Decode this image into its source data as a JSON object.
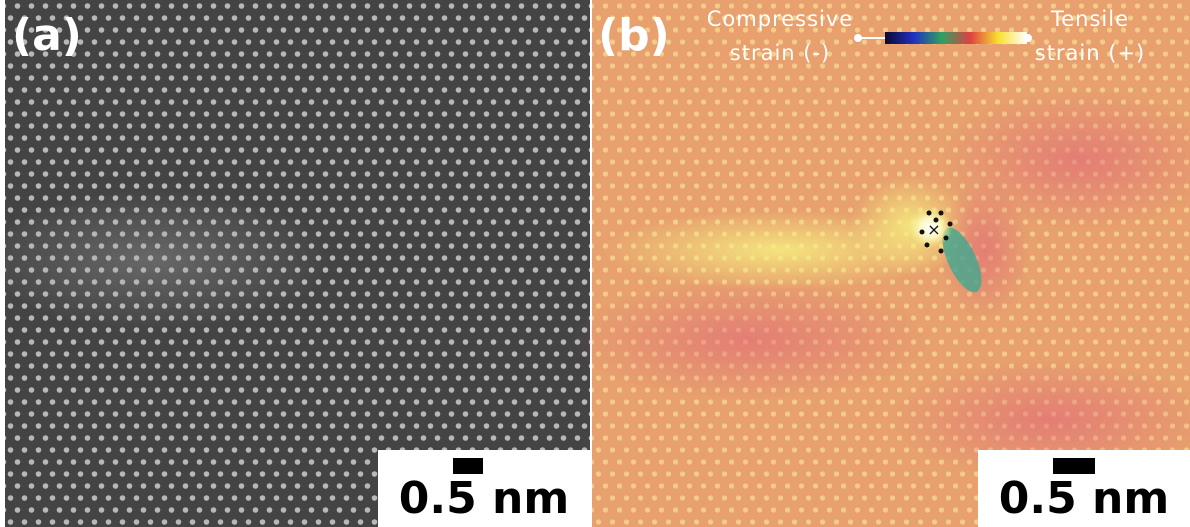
{
  "panels": [
    {
      "label": "(a)",
      "scale_bar": "0.5 nm"
    },
    {
      "label": "(b)",
      "scale_bar": "0.5 nm",
      "colorbar": {
        "left": [
          "Compressive",
          "strain (-)"
        ],
        "right": [
          "Tensile",
          "strain (+)"
        ]
      }
    }
  ]
}
